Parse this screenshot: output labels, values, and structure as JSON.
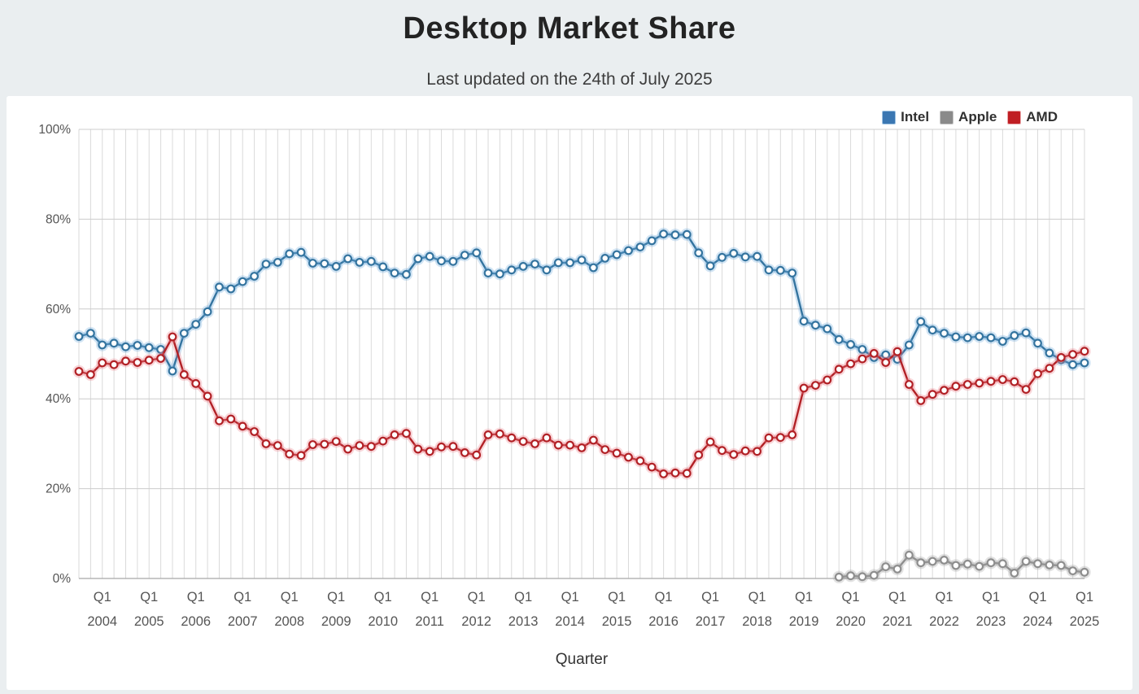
{
  "header": {
    "title": "Desktop Market Share",
    "subtitle": "Last updated on the 24th of July 2025"
  },
  "legend": [
    {
      "label": "Intel",
      "color": "#3b77b2",
      "border": "#9fc3e2"
    },
    {
      "label": "Apple",
      "color": "#8a8a8a",
      "border": "#c6c6c6"
    },
    {
      "label": "AMD",
      "color": "#c01e23",
      "border": "#eaabad"
    }
  ],
  "x_axis_title": "Quarter",
  "chart_data": {
    "type": "line",
    "title": "Desktop Market Share",
    "subtitle": "Last updated on the 24th of July 2025",
    "xlabel": "Quarter",
    "ylabel": "",
    "ylim": [
      0,
      100
    ],
    "grid": true,
    "legend_position": "top-right",
    "y_tick_labels": [
      "100%",
      "80%",
      "60%",
      "40%",
      "20%",
      "0%"
    ],
    "y_tick_values": [
      100,
      80,
      60,
      40,
      20,
      0
    ],
    "x_tick_quarter_label": "Q1",
    "x_tick_years": [
      "2004",
      "2005",
      "2006",
      "2007",
      "2008",
      "2009",
      "2010",
      "2011",
      "2012",
      "2013",
      "2014",
      "2015",
      "2016",
      "2017",
      "2018",
      "2019",
      "2020",
      "2021",
      "2022",
      "2023",
      "2024",
      "2025"
    ],
    "quarters": [
      "2003 Q3",
      "2003 Q4",
      "2004 Q1",
      "2004 Q2",
      "2004 Q3",
      "2004 Q4",
      "2005 Q1",
      "2005 Q2",
      "2005 Q3",
      "2005 Q4",
      "2006 Q1",
      "2006 Q2",
      "2006 Q3",
      "2006 Q4",
      "2007 Q1",
      "2007 Q2",
      "2007 Q3",
      "2007 Q4",
      "2008 Q1",
      "2008 Q2",
      "2008 Q3",
      "2008 Q4",
      "2009 Q1",
      "2009 Q2",
      "2009 Q3",
      "2009 Q4",
      "2010 Q1",
      "2010 Q2",
      "2010 Q3",
      "2010 Q4",
      "2011 Q1",
      "2011 Q2",
      "2011 Q3",
      "2011 Q4",
      "2012 Q1",
      "2012 Q2",
      "2012 Q3",
      "2012 Q4",
      "2013 Q1",
      "2013 Q2",
      "2013 Q3",
      "2013 Q4",
      "2014 Q1",
      "2014 Q2",
      "2014 Q3",
      "2014 Q4",
      "2015 Q1",
      "2015 Q2",
      "2015 Q3",
      "2015 Q4",
      "2016 Q1",
      "2016 Q2",
      "2016 Q3",
      "2016 Q4",
      "2017 Q1",
      "2017 Q2",
      "2017 Q3",
      "2017 Q4",
      "2018 Q1",
      "2018 Q2",
      "2018 Q3",
      "2018 Q4",
      "2019 Q1",
      "2019 Q2",
      "2019 Q3",
      "2019 Q4",
      "2020 Q1",
      "2020 Q2",
      "2020 Q3",
      "2020 Q4",
      "2021 Q1",
      "2021 Q2",
      "2021 Q3",
      "2021 Q4",
      "2022 Q1",
      "2022 Q2",
      "2022 Q3",
      "2022 Q4",
      "2023 Q1",
      "2023 Q2",
      "2023 Q3",
      "2023 Q4",
      "2024 Q1",
      "2024 Q2",
      "2024 Q3",
      "2024 Q4",
      "2025 Q1"
    ],
    "series": [
      {
        "name": "Intel",
        "line_color": "#34749f",
        "glow_color": "rgba(110,170,220,0.30)",
        "marker_fill": "#ffffff",
        "values": [
          53.9,
          54.6,
          52.0,
          52.4,
          51.6,
          51.9,
          51.4,
          51.0,
          46.2,
          54.6,
          56.6,
          59.4,
          64.9,
          64.5,
          66.1,
          67.3,
          70.0,
          70.4,
          72.3,
          72.6,
          70.2,
          70.1,
          69.5,
          71.2,
          70.4,
          70.6,
          69.4,
          68.0,
          67.7,
          71.2,
          71.7,
          70.7,
          70.6,
          72.0,
          72.5,
          68.0,
          67.8,
          68.7,
          69.5,
          70.0,
          68.7,
          70.3,
          70.3,
          70.9,
          69.2,
          71.3,
          72.1,
          73.0,
          73.8,
          75.2,
          76.7,
          76.5,
          76.6,
          72.5,
          69.6,
          71.5,
          72.4,
          71.6,
          71.7,
          68.7,
          68.6,
          68.0,
          57.3,
          56.4,
          55.6,
          53.2,
          52.1,
          51.0,
          49.2,
          49.8,
          48.8,
          52.0,
          57.2,
          55.3,
          54.6,
          53.8,
          53.6,
          53.9,
          53.6,
          52.8,
          54.1,
          54.7,
          52.4,
          50.2,
          48.7,
          47.6,
          48.0
        ]
      },
      {
        "name": "Apple",
        "line_color": "#8e8e8e",
        "glow_color": "rgba(160,160,160,0.30)",
        "marker_fill": "#ffffff",
        "values": [
          null,
          null,
          null,
          null,
          null,
          null,
          null,
          null,
          null,
          null,
          null,
          null,
          null,
          null,
          null,
          null,
          null,
          null,
          null,
          null,
          null,
          null,
          null,
          null,
          null,
          null,
          null,
          null,
          null,
          null,
          null,
          null,
          null,
          null,
          null,
          null,
          null,
          null,
          null,
          null,
          null,
          null,
          null,
          null,
          null,
          null,
          null,
          null,
          null,
          null,
          null,
          null,
          null,
          null,
          null,
          null,
          null,
          null,
          null,
          null,
          null,
          null,
          null,
          null,
          null,
          0.3,
          0.6,
          0.4,
          0.7,
          2.6,
          2.1,
          5.2,
          3.5,
          3.8,
          4.1,
          2.9,
          3.2,
          2.7,
          3.5,
          3.3,
          1.2,
          3.8,
          3.3,
          3.0,
          2.9,
          1.7,
          1.4
        ]
      },
      {
        "name": "AMD",
        "line_color": "#b22126",
        "glow_color": "rgba(235,125,135,0.30)",
        "marker_fill": "#ffffff",
        "values": [
          46.1,
          45.4,
          48.0,
          47.6,
          48.4,
          48.1,
          48.6,
          49.0,
          53.8,
          45.4,
          43.4,
          40.6,
          35.1,
          35.5,
          33.9,
          32.7,
          30.0,
          29.6,
          27.7,
          27.4,
          29.8,
          29.9,
          30.5,
          28.8,
          29.6,
          29.4,
          30.6,
          32.0,
          32.3,
          28.8,
          28.3,
          29.3,
          29.4,
          28.0,
          27.5,
          32.0,
          32.2,
          31.3,
          30.5,
          30.0,
          31.3,
          29.7,
          29.7,
          29.1,
          30.8,
          28.7,
          27.9,
          27.0,
          26.2,
          24.8,
          23.3,
          23.5,
          23.4,
          27.5,
          30.4,
          28.5,
          27.6,
          28.4,
          28.3,
          31.3,
          31.4,
          32.0,
          42.4,
          43.0,
          44.2,
          46.6,
          47.8,
          48.9,
          50.1,
          48.1,
          50.5,
          43.2,
          39.6,
          41.0,
          41.9,
          42.8,
          43.2,
          43.5,
          43.9,
          44.3,
          43.8,
          42.1,
          45.6,
          46.8,
          49.2,
          49.9,
          50.6
        ]
      }
    ]
  },
  "style": {
    "grid_vertical_color": "#dadada",
    "grid_horizontal_color": "#cccccc",
    "axis_line_color": "#a8a8a8",
    "tick_label_color": "#555555",
    "panel_bg": "#ffffff",
    "page_bg": "#eaeef0"
  }
}
